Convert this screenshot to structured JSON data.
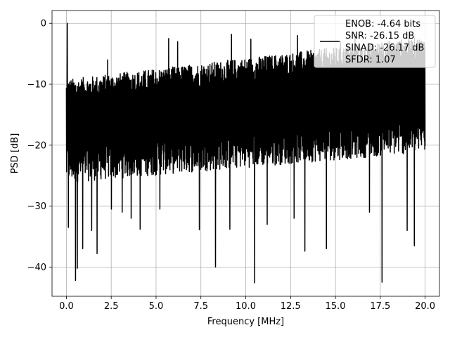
{
  "chart_data": {
    "type": "line",
    "title": "",
    "xlabel": "Frequency [MHz]",
    "ylabel": "PSD [dB]",
    "xlim": [
      -0.8,
      20.8
    ],
    "ylim": [
      -44.8,
      2.1
    ],
    "x_ticks": [
      0.0,
      2.5,
      5.0,
      7.5,
      10.0,
      12.5,
      15.0,
      17.5,
      20.0
    ],
    "x_tick_labels": [
      "0.0",
      "2.5",
      "5.0",
      "7.5",
      "10.0",
      "12.5",
      "15.0",
      "17.5",
      "20.0"
    ],
    "y_ticks": [
      0,
      -10,
      -20,
      -30,
      -40
    ],
    "y_tick_labels": [
      "0",
      "−10",
      "−20",
      "−30",
      "−40"
    ],
    "grid": true,
    "legend": {
      "position": "top-right",
      "entries": [
        "ENOB: -4.64 bits",
        "SNR: -26.15 dB",
        "SINAD: -26.17 dB",
        "SFDR: 1.07"
      ]
    },
    "series": [
      {
        "color": "#000000",
        "x_range": [
          0.0,
          20.0
        ],
        "points_count": 2000,
        "noise_band_bottom_start_db": -22,
        "noise_band_bottom_end_db": -17,
        "noise_band_top_start_db": -12,
        "noise_band_top_end_db": -5,
        "peak": {
          "x": 0.05,
          "y": 0.0
        },
        "deep_dips": [
          {
            "x": 0.1,
            "y": -33.5
          },
          {
            "x": 0.5,
            "y": -42.2
          },
          {
            "x": 0.6,
            "y": -40.2
          },
          {
            "x": 0.9,
            "y": -37.0
          },
          {
            "x": 1.4,
            "y": -34.0
          },
          {
            "x": 1.7,
            "y": -36.5
          },
          {
            "x": 1.7,
            "y": -37.8
          },
          {
            "x": 2.5,
            "y": -30.5
          },
          {
            "x": 3.1,
            "y": -31.0
          },
          {
            "x": 3.6,
            "y": -32.0
          },
          {
            "x": 4.1,
            "y": -33.8
          },
          {
            "x": 5.2,
            "y": -30.5
          },
          {
            "x": 7.4,
            "y": -33.9
          },
          {
            "x": 8.3,
            "y": -40.0
          },
          {
            "x": 9.1,
            "y": -33.8
          },
          {
            "x": 10.5,
            "y": -42.6
          },
          {
            "x": 11.2,
            "y": -33.0
          },
          {
            "x": 12.7,
            "y": -32.0
          },
          {
            "x": 13.3,
            "y": -37.4
          },
          {
            "x": 14.5,
            "y": -37.0
          },
          {
            "x": 16.9,
            "y": -31.0
          },
          {
            "x": 17.6,
            "y": -42.5
          },
          {
            "x": 19.0,
            "y": -34.0
          },
          {
            "x": 19.4,
            "y": -36.5
          }
        ],
        "high_peaks": [
          {
            "x": 2.3,
            "y": -6.0
          },
          {
            "x": 5.7,
            "y": -2.5
          },
          {
            "x": 6.2,
            "y": -3.0
          },
          {
            "x": 9.2,
            "y": -1.8
          },
          {
            "x": 10.3,
            "y": -2.6
          },
          {
            "x": 12.9,
            "y": -2.0
          },
          {
            "x": 15.3,
            "y": -3.0
          },
          {
            "x": 16.1,
            "y": -1.8
          },
          {
            "x": 17.6,
            "y": -3.2
          },
          {
            "x": 19.1,
            "y": -3.0
          }
        ]
      }
    ]
  }
}
